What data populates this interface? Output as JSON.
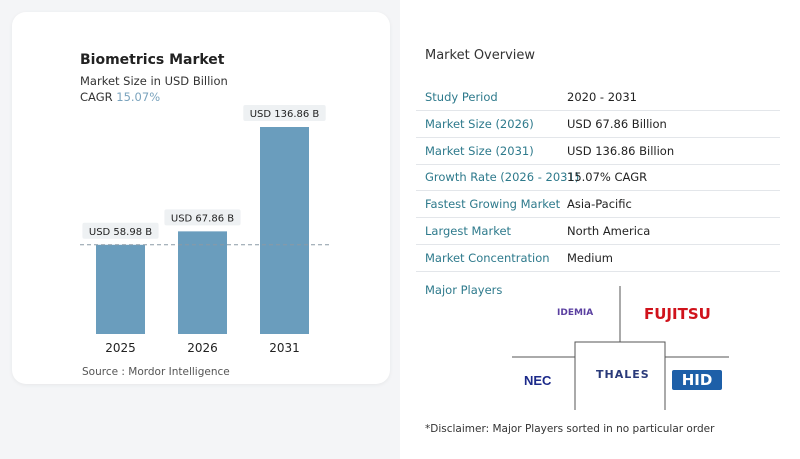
{
  "chart_data": {
    "type": "bar",
    "title": "Biometrics Market",
    "subtitle": "Market Size in USD Billion",
    "cagr_label": "CAGR",
    "cagr_value": "15.07%",
    "categories": [
      "2025",
      "2026",
      "2031"
    ],
    "values": [
      58.98,
      67.86,
      136.86
    ],
    "data_labels": [
      "USD 58.98 B",
      "USD 67.86 B",
      "USD 136.86 B"
    ],
    "bar_color": "#6a9dbd",
    "source": "Source :  Mordor Intelligence"
  },
  "overview": {
    "title": "Market Overview",
    "rows": [
      {
        "label": "Study Period",
        "value": "2020 - 2031"
      },
      {
        "label": "Market Size (2026)",
        "value": "USD 67.86 Billion"
      },
      {
        "label": "Market Size (2031)",
        "value": "USD 136.86 Billion"
      },
      {
        "label": "Growth Rate (2026 - 2031)",
        "value": "15.07% CAGR"
      },
      {
        "label": "Fastest Growing Market",
        "value": "Asia-Pacific"
      },
      {
        "label": "Largest Market",
        "value": "North America"
      },
      {
        "label": "Market Concentration",
        "value": "Medium"
      }
    ],
    "major_players_label": "Major Players",
    "players": [
      "IDEMIA",
      "FUJITSU",
      "NEC",
      "THALES",
      "HID"
    ],
    "disclaimer": "*Disclaimer: Major Players sorted in no particular order"
  }
}
